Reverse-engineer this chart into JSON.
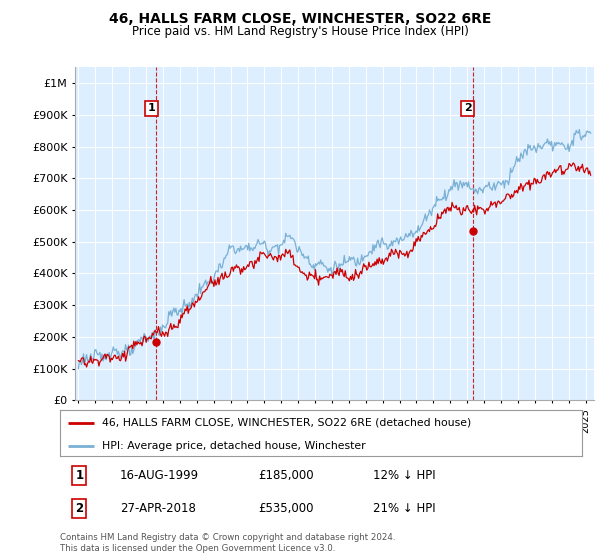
{
  "title": "46, HALLS FARM CLOSE, WINCHESTER, SO22 6RE",
  "subtitle": "Price paid vs. HM Land Registry's House Price Index (HPI)",
  "ylabel_ticks": [
    "£0",
    "£100K",
    "£200K",
    "£300K",
    "£400K",
    "£500K",
    "£600K",
    "£700K",
    "£800K",
    "£900K",
    "£1M"
  ],
  "ytick_values": [
    0,
    100000,
    200000,
    300000,
    400000,
    500000,
    600000,
    700000,
    800000,
    900000,
    1000000
  ],
  "ylim": [
    0,
    1050000
  ],
  "xlim_start": 1994.8,
  "xlim_end": 2025.5,
  "sale1_date": 1999.62,
  "sale1_price": 185000,
  "sale1_label": "1",
  "sale2_date": 2018.32,
  "sale2_price": 535000,
  "sale2_label": "2",
  "legend_line1": "46, HALLS FARM CLOSE, WINCHESTER, SO22 6RE (detached house)",
  "legend_line2": "HPI: Average price, detached house, Winchester",
  "table_row1": [
    "1",
    "16-AUG-1999",
    "£185,000",
    "12% ↓ HPI"
  ],
  "table_row2": [
    "2",
    "27-APR-2018",
    "£535,000",
    "21% ↓ HPI"
  ],
  "footnote": "Contains HM Land Registry data © Crown copyright and database right 2024.\nThis data is licensed under the Open Government Licence v3.0.",
  "line_color_sale": "#cc0000",
  "line_color_hpi": "#7ab0d4",
  "vline_color": "#cc0000",
  "background_color": "#ddeeff",
  "plot_bg_color": "#ddeeff",
  "grid_color": "#ffffff",
  "title_fontsize": 10,
  "subtitle_fontsize": 8.5
}
